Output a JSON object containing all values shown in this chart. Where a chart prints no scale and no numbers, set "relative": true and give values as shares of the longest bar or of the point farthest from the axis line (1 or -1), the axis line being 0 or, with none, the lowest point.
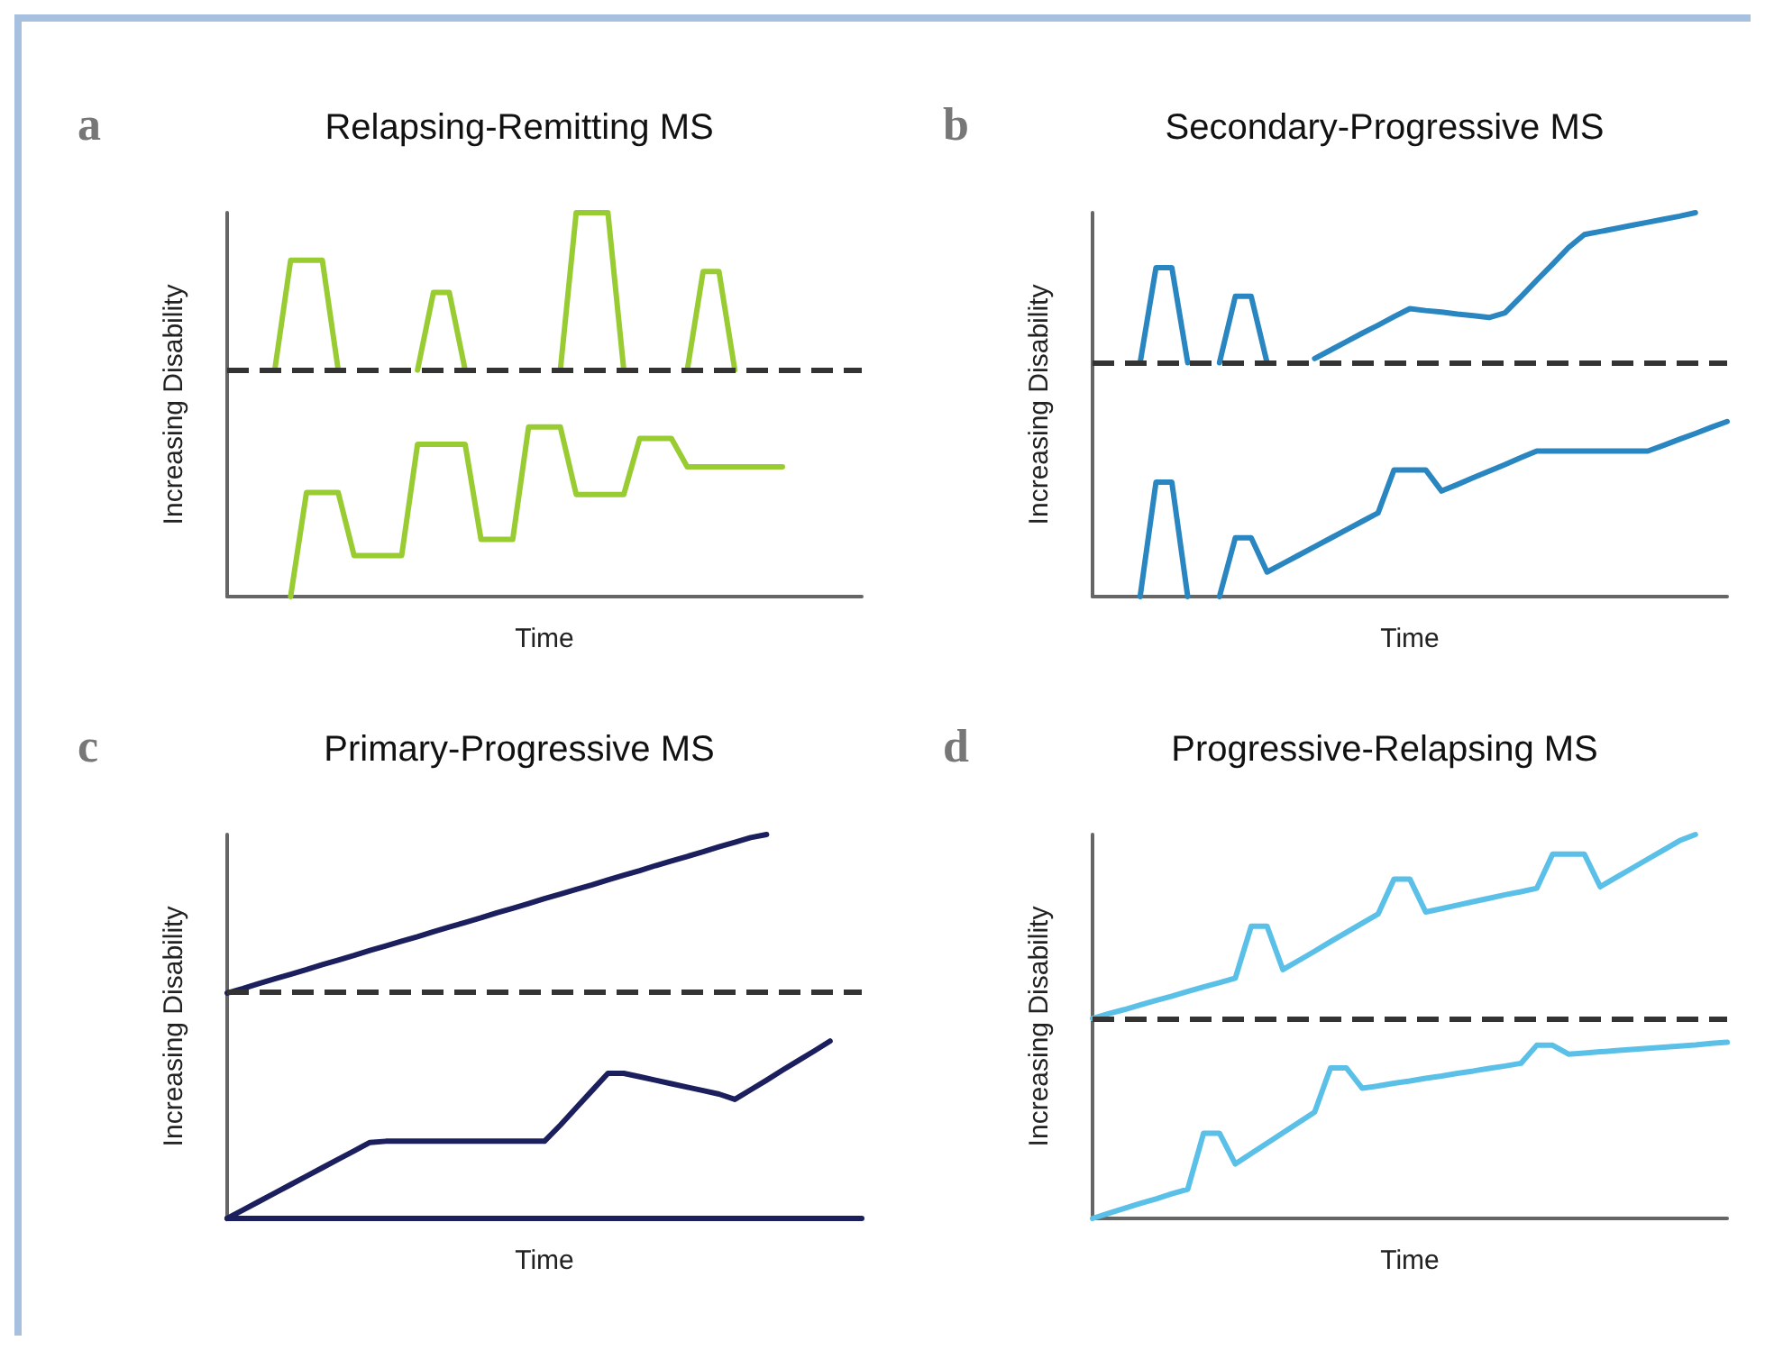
{
  "chart_data": [
    {
      "type": "line",
      "title": "Relapsing-Remitting MS",
      "annotations": [
        "a"
      ],
      "xlabel": "Time",
      "ylabel": "Increasing Disability",
      "relative": true,
      "line_style": "solid",
      "categories": [
        null,
        null,
        null,
        null,
        null,
        null,
        null,
        null,
        null,
        null,
        null,
        null,
        null,
        null,
        null,
        null,
        null,
        null,
        null,
        null,
        null,
        null,
        null,
        null,
        null,
        null,
        null,
        null,
        null,
        null,
        null,
        null,
        null,
        null,
        null,
        null,
        null,
        null,
        null,
        null,
        null
      ],
      "ref_lines": [
        {
          "axis": "y",
          "value": 0.59,
          "color": "#333333",
          "line_style": "dashed"
        }
      ],
      "series": [
        {
          "color": "#99cc33",
          "values": [
            null,
            null,
            null,
            0.59,
            0.876,
            0.876,
            0.876,
            0.59,
            null,
            null,
            null,
            null,
            null,
            null,
            null,
            null,
            null,
            null,
            null,
            null,
            null,
            null,
            null,
            null,
            null,
            null,
            null,
            null,
            null,
            null,
            null,
            null,
            null,
            null,
            null,
            null,
            null,
            null,
            null,
            null,
            null
          ]
        },
        {
          "color": "#99cc33",
          "values": [
            null,
            null,
            null,
            null,
            null,
            null,
            null,
            null,
            null,
            null,
            null,
            null,
            0.59,
            0.792,
            0.792,
            0.59,
            null,
            null,
            null,
            null,
            null,
            null,
            null,
            null,
            null,
            null,
            null,
            null,
            null,
            null,
            null,
            null,
            null,
            null,
            null,
            null,
            null,
            null,
            null,
            null,
            null
          ]
        },
        {
          "color": "#99cc33",
          "values": [
            null,
            null,
            null,
            null,
            null,
            null,
            null,
            null,
            null,
            null,
            null,
            null,
            null,
            null,
            null,
            null,
            null,
            null,
            null,
            null,
            null,
            0.59,
            1.0,
            1.0,
            1.0,
            0.59,
            null,
            null,
            null,
            null,
            null,
            null,
            null,
            null,
            null,
            null,
            null,
            null,
            null,
            null,
            null
          ]
        },
        {
          "color": "#99cc33",
          "values": [
            null,
            null,
            null,
            null,
            null,
            null,
            null,
            null,
            null,
            null,
            null,
            null,
            null,
            null,
            null,
            null,
            null,
            null,
            null,
            null,
            null,
            null,
            null,
            null,
            null,
            null,
            null,
            null,
            null,
            0.59,
            0.847,
            0.847,
            0.59,
            null,
            null,
            null,
            null,
            null,
            null,
            null,
            null
          ]
        },
        {
          "color": "#99cc33",
          "values": [
            null,
            null,
            null,
            null,
            0,
            0.271,
            0.271,
            0.271,
            0.107,
            0.107,
            0.107,
            0.107,
            0.397,
            0.397,
            0.397,
            0.397,
            0.149,
            0.149,
            0.149,
            0.442,
            0.442,
            0.442,
            0.266,
            0.266,
            0.266,
            0.266,
            0.412,
            0.412,
            0.412,
            0.338,
            0.338,
            0.338,
            0.338,
            0.338,
            0.338,
            0.338,
            null,
            null,
            null,
            null,
            null
          ]
        }
      ]
    },
    {
      "type": "line",
      "title": "Secondary-Progressive MS",
      "annotations": [
        "b"
      ],
      "xlabel": "Time",
      "ylabel": "Increasing Disability",
      "relative": true,
      "line_style": "solid",
      "categories": [
        null,
        null,
        null,
        null,
        null,
        null,
        null,
        null,
        null,
        null,
        null,
        null,
        null,
        null,
        null,
        null,
        null,
        null,
        null,
        null,
        null,
        null,
        null,
        null,
        null,
        null,
        null,
        null,
        null,
        null,
        null,
        null,
        null,
        null,
        null,
        null,
        null,
        null,
        null,
        null,
        null
      ],
      "ref_lines": [
        {
          "axis": "y",
          "value": 0.609,
          "color": "#333333",
          "line_style": "dashed"
        }
      ],
      "series": [
        {
          "color": "#2a86c0",
          "values": [
            null,
            null,
            null,
            0.609,
            0.857,
            0.857,
            0.609,
            null,
            null,
            null,
            null,
            null,
            null,
            null,
            null,
            null,
            null,
            null,
            null,
            null,
            null,
            null,
            null,
            null,
            null,
            null,
            null,
            null,
            null,
            null,
            null,
            null,
            null,
            null,
            null,
            null,
            null,
            null,
            null,
            null,
            null
          ]
        },
        {
          "color": "#2a86c0",
          "values": [
            null,
            null,
            null,
            null,
            null,
            null,
            null,
            null,
            0.609,
            0.782,
            0.782,
            0.609,
            null,
            null,
            null,
            null,
            null,
            null,
            null,
            null,
            null,
            null,
            null,
            null,
            null,
            null,
            null,
            null,
            null,
            null,
            null,
            null,
            null,
            null,
            null,
            null,
            null,
            null,
            null,
            null,
            null
          ]
        },
        {
          "color": "#2a86c0",
          "values": [
            null,
            null,
            null,
            null,
            null,
            null,
            null,
            null,
            null,
            null,
            null,
            null,
            null,
            null,
            0.62,
            0.642,
            0.664,
            0.686,
            0.707,
            0.729,
            0.75,
            0.745,
            0.741,
            0.736,
            0.732,
            0.727,
            0.739,
            0.781,
            0.824,
            0.866,
            0.909,
            0.943,
            0.951,
            0.959,
            0.967,
            0.975,
            0.983,
            0.991,
            1.0,
            null,
            null
          ]
        },
        {
          "color": "#2a86c0",
          "values": [
            null,
            null,
            null,
            0,
            0.298,
            0.298,
            0,
            null,
            null,
            null,
            null,
            null,
            null,
            null,
            null,
            null,
            null,
            null,
            null,
            null,
            null,
            null,
            null,
            null,
            null,
            null,
            null,
            null,
            null,
            null,
            null,
            null,
            null,
            null,
            null,
            null,
            null,
            null,
            null,
            null,
            null
          ]
        },
        {
          "color": "#2a86c0",
          "values": [
            null,
            null,
            null,
            null,
            null,
            null,
            null,
            null,
            0,
            0.153,
            0.153,
            0.064,
            0.086,
            0.108,
            0.13,
            0.152,
            0.174,
            0.196,
            0.218,
            0.33,
            0.33,
            0.33,
            0.275,
            0.292,
            0.31,
            0.327,
            0.344,
            0.362,
            0.379,
            0.379,
            0.379,
            0.379,
            0.379,
            0.379,
            0.379,
            0.379,
            0.394,
            0.41,
            0.425,
            0.441,
            0.456
          ]
        }
      ]
    },
    {
      "type": "line",
      "title": "Primary-Progressive MS",
      "annotations": [
        "c"
      ],
      "xlabel": "Time",
      "ylabel": "Increasing Disability",
      "relative": true,
      "line_style": "solid",
      "categories": [
        null,
        null,
        null,
        null,
        null,
        null,
        null,
        null,
        null,
        null,
        null,
        null,
        null,
        null,
        null,
        null,
        null,
        null,
        null,
        null,
        null,
        null,
        null,
        null,
        null,
        null,
        null,
        null,
        null,
        null,
        null,
        null,
        null,
        null,
        null,
        null,
        null,
        null,
        null,
        null,
        null
      ],
      "ref_lines": [
        {
          "axis": "y",
          "value": 0.589,
          "color": "#333333",
          "line_style": "dashed"
        }
      ],
      "series": [
        {
          "color": "#1c1f5e",
          "values": [
            0.587,
            0.599,
            0.612,
            0.624,
            0.636,
            0.648,
            0.661,
            0.673,
            0.685,
            0.698,
            0.71,
            0.722,
            0.734,
            0.747,
            0.759,
            0.771,
            0.783,
            0.796,
            0.808,
            0.82,
            0.833,
            0.845,
            0.857,
            0.869,
            0.882,
            0.894,
            0.906,
            0.919,
            0.931,
            0.943,
            0.955,
            0.968,
            0.98,
            0.992,
            1.0,
            null,
            null,
            null,
            null,
            null,
            null
          ]
        },
        {
          "color": "#1c1f5e",
          "values": [
            0,
            0.022,
            0.044,
            0.066,
            0.088,
            0.11,
            0.132,
            0.154,
            0.176,
            0.198,
            0.201,
            0.201,
            0.201,
            0.201,
            0.201,
            0.201,
            0.201,
            0.201,
            0.201,
            0.201,
            0.201,
            0.243,
            0.288,
            0.333,
            0.378,
            0.378,
            0.369,
            0.36,
            0.351,
            0.342,
            0.333,
            0.324,
            0.31,
            0.335,
            0.36,
            0.386,
            0.411,
            0.436,
            0.462,
            null,
            null
          ]
        },
        {
          "color": "#1c1f5e",
          "values": [
            0,
            0,
            0,
            0,
            0,
            0,
            0,
            0,
            0,
            0,
            0,
            0,
            0,
            0,
            0,
            0,
            0,
            0,
            0,
            0,
            0,
            0,
            0,
            0,
            0,
            0,
            0,
            0,
            0,
            0,
            0,
            0,
            0,
            0,
            0,
            0,
            0,
            0,
            0,
            0,
            0
          ]
        }
      ]
    },
    {
      "type": "line",
      "title": "Progressive-Relapsing MS",
      "annotations": [
        "d"
      ],
      "xlabel": "Time",
      "ylabel": "Increasing Disability",
      "relative": true,
      "line_style": "solid",
      "categories": [
        null,
        null,
        null,
        null,
        null,
        null,
        null,
        null,
        null,
        null,
        null,
        null,
        null,
        null,
        null,
        null,
        null,
        null,
        null,
        null,
        null,
        null,
        null,
        null,
        null,
        null,
        null,
        null,
        null,
        null,
        null,
        null,
        null,
        null,
        null,
        null,
        null,
        null,
        null,
        null,
        null
      ],
      "ref_lines": [
        {
          "axis": "y",
          "value": 0.521,
          "color": "#333333",
          "line_style": "dashed"
        }
      ],
      "series": [
        {
          "color": "#5bc0e8",
          "values": [
            0.521,
            0.533,
            0.544,
            0.556,
            0.568,
            0.579,
            0.591,
            0.603,
            0.614,
            0.626,
            0.761,
            0.761,
            0.648,
            0.672,
            0.696,
            0.721,
            0.745,
            0.769,
            0.793,
            0.884,
            0.884,
            0.798,
            0.807,
            0.816,
            0.825,
            0.834,
            0.843,
            0.851,
            0.86,
            0.949,
            0.949,
            0.949,
            0.864,
            0.888,
            0.912,
            0.936,
            0.96,
            0.984,
            1.0,
            null,
            null
          ]
        },
        {
          "color": "#5bc0e8",
          "values": [
            0,
            0.013,
            0.026,
            0.039,
            0.051,
            0.064,
            0.076,
            0.222,
            0.222,
            0.142,
            0.169,
            0.196,
            0.223,
            0.25,
            0.277,
            0.392,
            0.392,
            0.339,
            0.345,
            0.352,
            0.358,
            0.365,
            0.371,
            0.378,
            0.384,
            0.391,
            0.397,
            0.404,
            0.451,
            0.451,
            0.428,
            0.431,
            0.434,
            0.437,
            0.44,
            0.443,
            0.446,
            0.449,
            0.452,
            0.456,
            0.459
          ]
        }
      ]
    }
  ]
}
